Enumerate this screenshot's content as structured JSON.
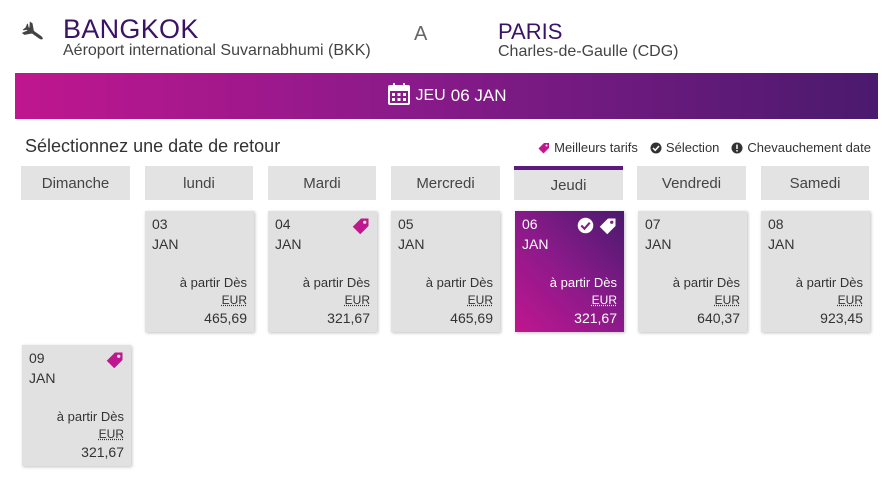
{
  "route": {
    "origin_city": "BANGKOK",
    "origin_airport": "Aéroport international Suvarnabhumi (BKK)",
    "separator": "A",
    "destination_city": "PARIS",
    "destination_airport": "Charles-de-Gaulle (CDG)",
    "icon": "plane-icon"
  },
  "banner": {
    "icon": "calendar-icon",
    "day": "JEU",
    "date": "06 JAN"
  },
  "section_title": "Sélectionnez une date de retour",
  "legend": {
    "best_price": "Meilleurs tarifs",
    "selection": "Sélection",
    "overlap": "Chevauchement date"
  },
  "weekdays": [
    "Dimanche",
    "lundi",
    "Mardi",
    "Mercredi",
    "Jeudi",
    "Vendredi",
    "Samedi"
  ],
  "active_weekday": "Jeudi",
  "cards": [
    {
      "day": "03",
      "month": "JAN",
      "from": "à partir Dès",
      "currency": "EUR",
      "price": "465,69",
      "best": false,
      "selected": false
    },
    {
      "day": "04",
      "month": "JAN",
      "from": "à partir Dès",
      "currency": "EUR",
      "price": "321,67",
      "best": true,
      "selected": false
    },
    {
      "day": "05",
      "month": "JAN",
      "from": "à partir Dès",
      "currency": "EUR",
      "price": "465,69",
      "best": false,
      "selected": false
    },
    {
      "day": "06",
      "month": "JAN",
      "from": "à partir Dès",
      "currency": "EUR",
      "price": "321,67",
      "best": true,
      "selected": true
    },
    {
      "day": "07",
      "month": "JAN",
      "from": "à partir Dès",
      "currency": "EUR",
      "price": "640,37",
      "best": false,
      "selected": false
    },
    {
      "day": "08",
      "month": "JAN",
      "from": "à partir Dès",
      "currency": "EUR",
      "price": "923,45",
      "best": false,
      "selected": false
    },
    {
      "day": "09",
      "month": "JAN",
      "from": "à partir Dès",
      "currency": "EUR",
      "price": "321,67",
      "best": true,
      "selected": false
    }
  ],
  "colors": {
    "brand_magenta": "#c0168f",
    "brand_purple": "#4a1a6e",
    "tag_pink": "#c0168f"
  }
}
